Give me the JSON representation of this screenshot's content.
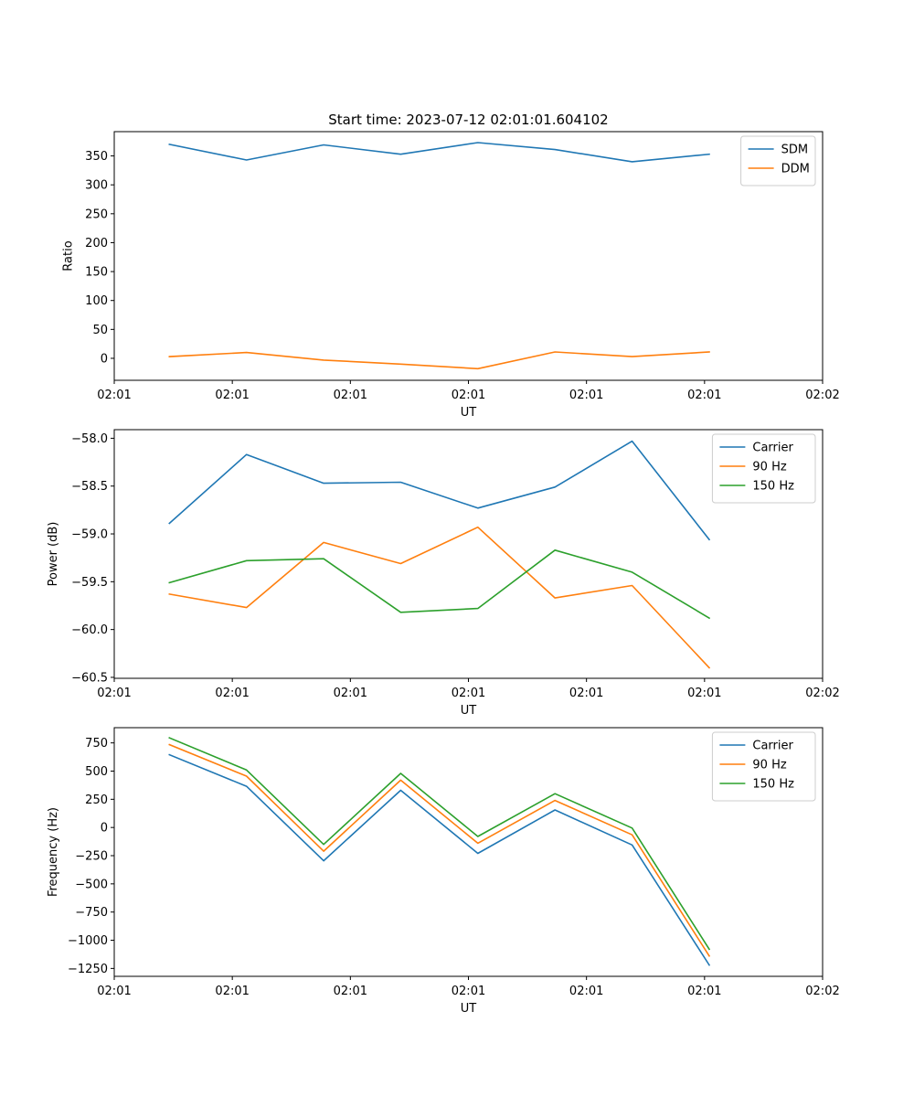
{
  "figure_title": "Start time: 2023-07-12 02:01:01.604102",
  "chart_data": [
    {
      "type": "line",
      "title": "Start time: 2023-07-12 02:01:01.604102",
      "xlabel": "UT",
      "ylabel": "Ratio",
      "xlim": [
        0,
        9
      ],
      "ylim": [
        -38,
        392
      ],
      "xticks": [
        0,
        1.5,
        3,
        4.5,
        6,
        7.5,
        9
      ],
      "xtick_labels": [
        "02:01",
        "02:01",
        "02:01",
        "02:01",
        "02:01",
        "02:01",
        "02:02"
      ],
      "yticks": [
        0,
        50,
        100,
        150,
        200,
        250,
        300,
        350
      ],
      "ytick_labels": [
        "0",
        "50",
        "100",
        "150",
        "200",
        "250",
        "300",
        "350"
      ],
      "x": [
        0.7,
        1.68,
        2.66,
        3.64,
        4.62,
        5.6,
        6.58,
        7.56
      ],
      "legend_position": "top-right",
      "series": [
        {
          "name": "SDM",
          "color": "#1f77b4",
          "values": [
            370,
            343,
            369,
            353,
            373,
            361,
            340,
            353
          ]
        },
        {
          "name": "DDM",
          "color": "#ff7f0e",
          "values": [
            3,
            10,
            -3,
            -10,
            -18,
            11,
            3,
            11
          ]
        }
      ]
    },
    {
      "type": "line",
      "title": "",
      "xlabel": "UT",
      "ylabel": "Power (dB)",
      "xlim": [
        0,
        9
      ],
      "ylim": [
        -60.51,
        -57.91
      ],
      "xticks": [
        0,
        1.5,
        3,
        4.5,
        6,
        7.5,
        9
      ],
      "xtick_labels": [
        "02:01",
        "02:01",
        "02:01",
        "02:01",
        "02:01",
        "02:01",
        "02:02"
      ],
      "yticks": [
        -60.5,
        -60.0,
        -59.5,
        -59.0,
        -58.5,
        -58.0
      ],
      "ytick_labels": [
        "−60.5",
        "−60.0",
        "−59.5",
        "−59.0",
        "−58.5",
        "−58.0"
      ],
      "x": [
        0.7,
        1.68,
        2.66,
        3.64,
        4.62,
        5.6,
        6.58,
        7.56
      ],
      "legend_position": "top-right",
      "series": [
        {
          "name": "Carrier",
          "color": "#1f77b4",
          "values": [
            -58.89,
            -58.17,
            -58.47,
            -58.46,
            -58.73,
            -58.51,
            -58.03,
            -59.06
          ]
        },
        {
          "name": "90 Hz",
          "color": "#ff7f0e",
          "values": [
            -59.63,
            -59.77,
            -59.09,
            -59.31,
            -58.93,
            -59.67,
            -59.54,
            -60.4
          ]
        },
        {
          "name": "150 Hz",
          "color": "#2ca02c",
          "values": [
            -59.51,
            -59.28,
            -59.26,
            -59.82,
            -59.78,
            -59.17,
            -59.4,
            -59.88
          ]
        }
      ]
    },
    {
      "type": "line",
      "title": "",
      "xlabel": "UT",
      "ylabel": "Frequency (Hz)",
      "xlim": [
        0,
        9
      ],
      "ylim": [
        -1320,
        885
      ],
      "xticks": [
        0,
        1.5,
        3,
        4.5,
        6,
        7.5,
        9
      ],
      "xtick_labels": [
        "02:01",
        "02:01",
        "02:01",
        "02:01",
        "02:01",
        "02:01",
        "02:02"
      ],
      "yticks": [
        -1250,
        -1000,
        -750,
        -500,
        -250,
        0,
        250,
        500,
        750
      ],
      "ytick_labels": [
        "−1250",
        "−1000",
        "−750",
        "−500",
        "−250",
        "0",
        "250",
        "500",
        "750"
      ],
      "x": [
        0.7,
        1.68,
        2.66,
        3.64,
        4.62,
        5.6,
        6.58,
        7.56
      ],
      "legend_position": "top-right",
      "series": [
        {
          "name": "Carrier",
          "color": "#1f77b4",
          "values": [
            645,
            365,
            -295,
            330,
            -230,
            155,
            -155,
            -1220
          ]
        },
        {
          "name": "90 Hz",
          "color": "#ff7f0e",
          "values": [
            735,
            455,
            -210,
            420,
            -140,
            240,
            -65,
            -1140
          ]
        },
        {
          "name": "150 Hz",
          "color": "#2ca02c",
          "values": [
            795,
            510,
            -150,
            480,
            -80,
            300,
            -5,
            -1080
          ]
        }
      ]
    }
  ]
}
